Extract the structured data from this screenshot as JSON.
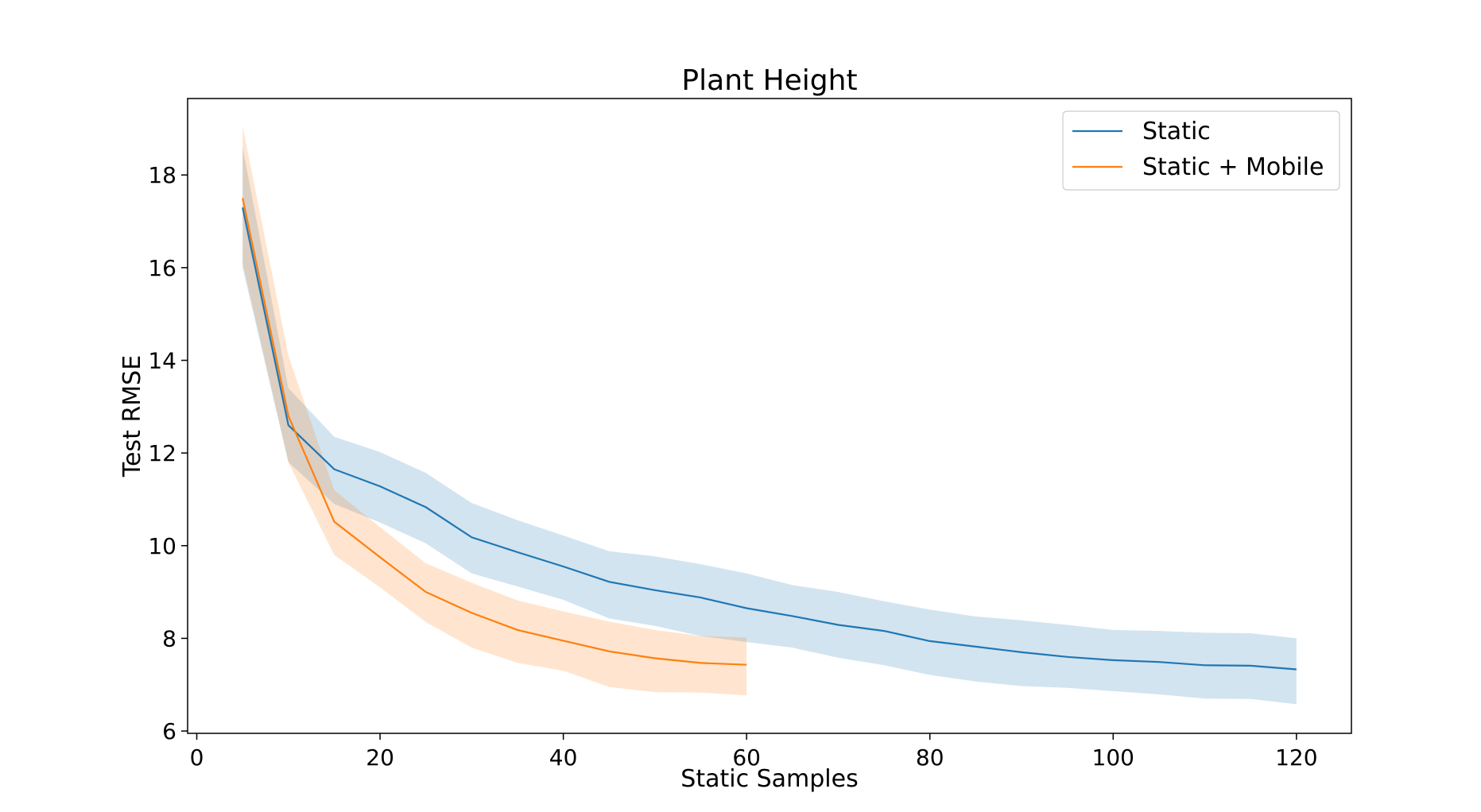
{
  "chart_data": {
    "type": "line",
    "title": "Plant Height",
    "xlabel": "Static Samples",
    "ylabel": "Test RMSE",
    "xlim": [
      -1,
      126
    ],
    "ylim": [
      5.95,
      19.65
    ],
    "xticks": [
      0,
      20,
      40,
      60,
      80,
      100,
      120
    ],
    "yticks": [
      6,
      8,
      10,
      12,
      14,
      16,
      18
    ],
    "grid": false,
    "legend_position": "upper right",
    "series": [
      {
        "name": "Static",
        "color": "#1f77b4",
        "band_color": "#1f77b4",
        "x": [
          5,
          10,
          15,
          20,
          25,
          30,
          35,
          40,
          45,
          50,
          55,
          60,
          65,
          70,
          75,
          80,
          85,
          90,
          95,
          100,
          105,
          110,
          115,
          120
        ],
        "y": [
          17.3,
          12.6,
          11.65,
          11.28,
          10.83,
          10.18,
          9.86,
          9.55,
          9.22,
          9.04,
          8.88,
          8.65,
          8.48,
          8.29,
          8.16,
          7.94,
          7.82,
          7.7,
          7.6,
          7.53,
          7.49,
          7.42,
          7.41,
          7.33
        ],
        "upper": [
          18.6,
          13.4,
          12.35,
          12.02,
          11.57,
          10.92,
          10.55,
          10.22,
          9.88,
          9.77,
          9.6,
          9.4,
          9.15,
          9.0,
          8.8,
          8.62,
          8.47,
          8.39,
          8.29,
          8.18,
          8.16,
          8.12,
          8.11,
          8.0
        ],
        "lower": [
          16.0,
          11.8,
          10.9,
          10.5,
          10.05,
          9.4,
          9.12,
          8.83,
          8.43,
          8.27,
          8.05,
          7.92,
          7.8,
          7.58,
          7.42,
          7.21,
          7.07,
          6.97,
          6.93,
          6.86,
          6.79,
          6.7,
          6.69,
          6.58
        ]
      },
      {
        "name": "Static + Mobile",
        "color": "#ff7f0e",
        "band_color": "#ff7f0e",
        "x": [
          5,
          10,
          15,
          20,
          25,
          30,
          35,
          40,
          45,
          50,
          55,
          60
        ],
        "y": [
          17.5,
          12.8,
          10.52,
          9.75,
          9.0,
          8.55,
          8.18,
          7.95,
          7.72,
          7.57,
          7.47,
          7.43
        ],
        "upper": [
          19.05,
          14.1,
          11.2,
          10.4,
          9.62,
          9.2,
          8.82,
          8.58,
          8.36,
          8.18,
          8.05,
          8.02
        ],
        "lower": [
          16.1,
          11.8,
          9.8,
          9.1,
          8.35,
          7.8,
          7.47,
          7.3,
          6.95,
          6.84,
          6.83,
          6.77
        ]
      }
    ]
  }
}
